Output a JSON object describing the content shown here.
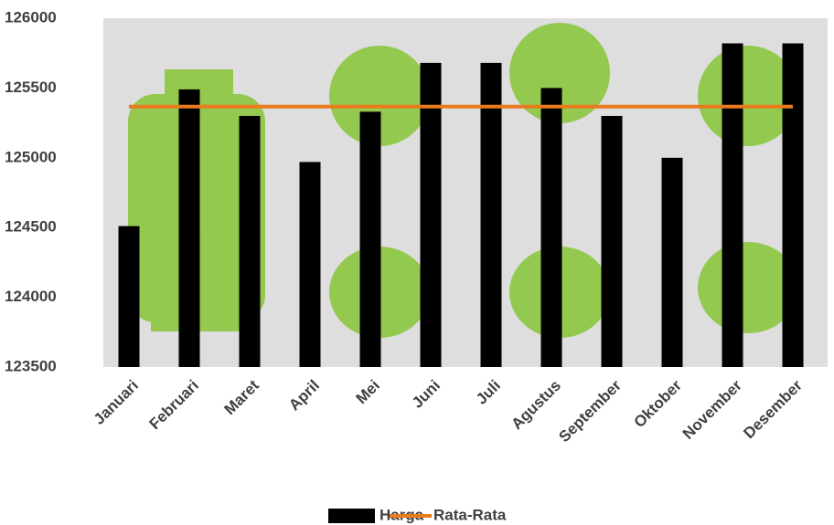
{
  "chart_data": {
    "type": "bar-line",
    "categories": [
      "Januari",
      "Februari",
      "Maret",
      "April",
      "Mei",
      "Juni",
      "Juli",
      "Agustus",
      "September",
      "Oktober",
      "November",
      "Desember"
    ],
    "series": [
      {
        "name": "Harga",
        "type": "bar",
        "color": "#000000",
        "values": [
          124510,
          125490,
          125300,
          124970,
          125330,
          125680,
          125680,
          125500,
          125300,
          125000,
          125820,
          125820
        ]
      },
      {
        "name": "Rata-Rata",
        "type": "line",
        "color": "#e97a1e",
        "values": [
          125367,
          125367,
          125367,
          125367,
          125367,
          125367,
          125367,
          125367,
          125367,
          125367,
          125367,
          125367
        ]
      }
    ],
    "ylim": [
      123500,
      126000
    ],
    "yticks": [
      123500,
      124000,
      124500,
      125000,
      125500,
      126000
    ],
    "legend": "bottom"
  }
}
